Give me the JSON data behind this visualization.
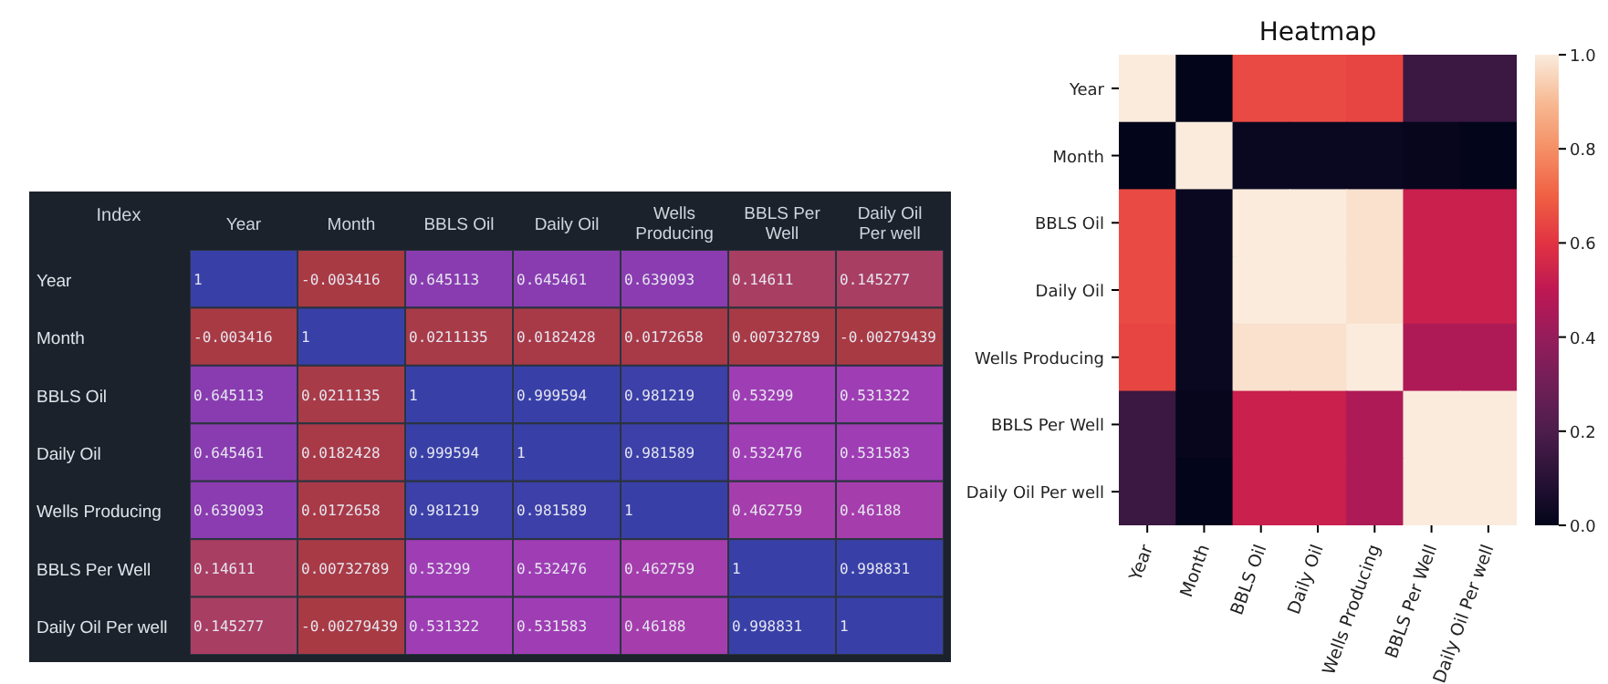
{
  "chart_data": [
    {
      "type": "heatmap",
      "ylabel": "Index",
      "categories": [
        "Year",
        "Month",
        "BBLS Oil",
        "Daily Oil",
        "Wells Producing",
        "BBLS Per Well",
        "Daily Oil Per well"
      ],
      "y_categories": [
        "Year",
        "Month",
        "BBLS Oil",
        "Daily Oil",
        "Wells Producing",
        "BBLS Per Well",
        "Daily Oil Per well"
      ],
      "data_labels": true,
      "cells": [
        [
          1,
          -0.003416,
          0.645113,
          0.645461,
          0.639093,
          0.14611,
          0.145277
        ],
        [
          -0.003416,
          1,
          0.0211135,
          0.0182428,
          0.0172658,
          0.00732789,
          -0.00279439
        ],
        [
          0.645113,
          0.0211135,
          1,
          0.999594,
          0.981219,
          0.53299,
          0.531322
        ],
        [
          0.645461,
          0.0182428,
          0.999594,
          1,
          0.981589,
          0.532476,
          0.531583
        ],
        [
          0.639093,
          0.0172658,
          0.981219,
          0.981589,
          1,
          0.462759,
          0.46188
        ],
        [
          0.14611,
          0.00732789,
          0.53299,
          0.532476,
          0.462759,
          1,
          0.998831
        ],
        [
          0.145277,
          -0.00279439,
          0.531322,
          0.531583,
          0.46188,
          0.998831,
          1
        ]
      ]
    },
    {
      "type": "heatmap",
      "title": "Heatmap",
      "categories": [
        "Year",
        "Month",
        "BBLS Oil",
        "Daily Oil",
        "Wells Producing",
        "BBLS Per Well",
        "Daily Oil Per well"
      ],
      "y_categories": [
        "Year",
        "Month",
        "BBLS Oil",
        "Daily Oil",
        "Wells Producing",
        "BBLS Per Well",
        "Daily Oil Per well"
      ],
      "clim": [
        0,
        1
      ],
      "cticks": [
        {
          "value": 0,
          "label": "0.0"
        },
        {
          "value": 0.2,
          "label": "0.2"
        },
        {
          "value": 0.4,
          "label": "0.4"
        },
        {
          "value": 0.6,
          "label": "0.6"
        },
        {
          "value": 0.8,
          "label": "0.8"
        },
        {
          "value": 1,
          "label": "1.0"
        }
      ],
      "cells": [
        [
          1,
          0,
          0.65,
          0.65,
          0.64,
          0.15,
          0.15
        ],
        [
          0,
          1,
          0.02,
          0.02,
          0.02,
          0.01,
          0
        ],
        [
          0.65,
          0.02,
          1,
          1,
          0.98,
          0.53,
          0.53
        ],
        [
          0.65,
          0.02,
          1,
          1,
          0.98,
          0.53,
          0.53
        ],
        [
          0.64,
          0.02,
          0.98,
          0.98,
          1,
          0.46,
          0.46
        ],
        [
          0.15,
          0.01,
          0.53,
          0.53,
          0.46,
          1,
          1
        ],
        [
          0.15,
          0,
          0.53,
          0.53,
          0.46,
          1,
          1
        ]
      ]
    }
  ]
}
